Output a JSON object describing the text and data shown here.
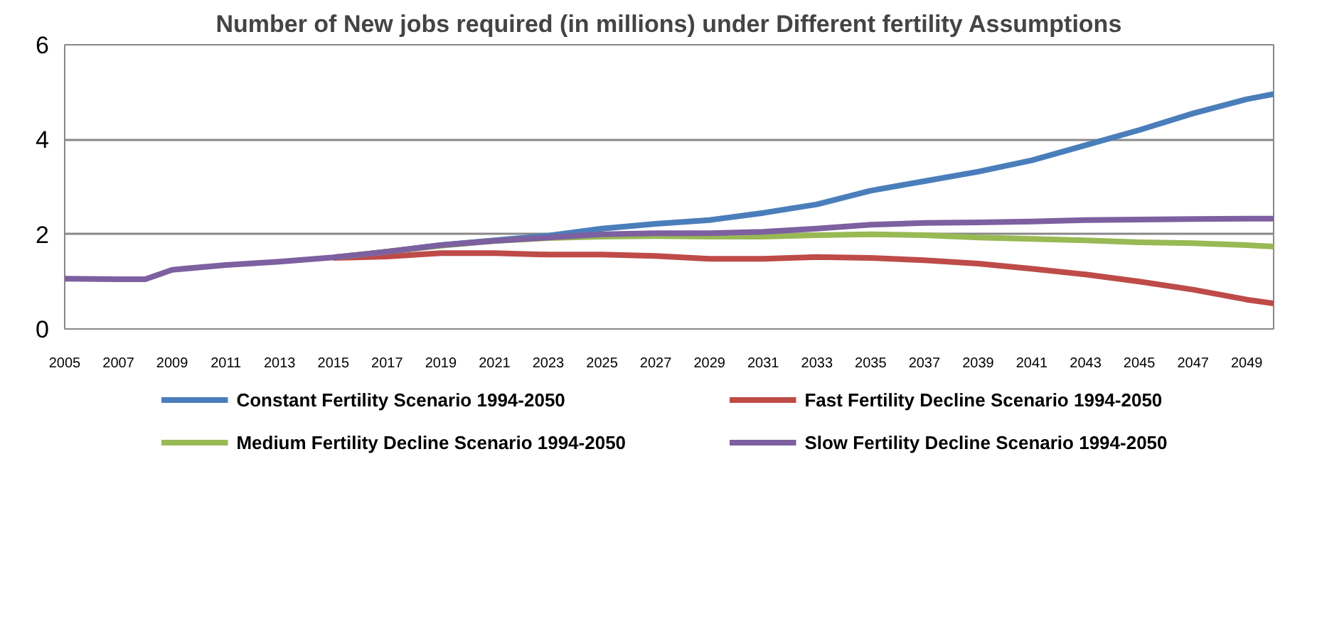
{
  "chart_data": {
    "type": "line",
    "title": "Number of New jobs required (in millions) under Different fertility Assumptions",
    "x": [
      2005,
      2007,
      2008,
      2009,
      2011,
      2013,
      2015,
      2017,
      2019,
      2021,
      2023,
      2025,
      2027,
      2029,
      2031,
      2033,
      2035,
      2037,
      2039,
      2041,
      2043,
      2045,
      2047,
      2049,
      2050
    ],
    "xlim": [
      2005,
      2050
    ],
    "xticks": [
      2005,
      2007,
      2009,
      2011,
      2013,
      2015,
      2017,
      2019,
      2021,
      2023,
      2025,
      2027,
      2029,
      2031,
      2033,
      2035,
      2037,
      2039,
      2041,
      2043,
      2045,
      2047,
      2049
    ],
    "ylim": [
      0,
      6
    ],
    "yticks": [
      0,
      2,
      4,
      6
    ],
    "grid": "y",
    "legend": "bottom",
    "line_style": "solid",
    "marker": "none",
    "series": [
      {
        "name": "Constant Fertility Scenario 1994-2050",
        "color": "#4a7ebb",
        "values": [
          null,
          null,
          null,
          null,
          null,
          null,
          1.51,
          1.63,
          1.77,
          1.87,
          1.97,
          2.12,
          2.22,
          2.3,
          2.45,
          2.63,
          2.92,
          3.12,
          3.32,
          3.56,
          3.88,
          4.2,
          4.55,
          4.85,
          4.96
        ]
      },
      {
        "name": "Fast Fertility Decline Scenario 1994-2050",
        "color": "#be4b48",
        "values": [
          null,
          null,
          null,
          null,
          null,
          null,
          1.5,
          1.53,
          1.6,
          1.6,
          1.57,
          1.57,
          1.54,
          1.48,
          1.48,
          1.52,
          1.5,
          1.45,
          1.38,
          1.27,
          1.15,
          1.0,
          0.83,
          0.62,
          0.54
        ]
      },
      {
        "name": "Medium Fertility Decline Scenario 1994-2050",
        "color": "#98b954",
        "values": [
          null,
          null,
          null,
          null,
          null,
          null,
          1.51,
          1.63,
          1.76,
          1.86,
          1.92,
          1.95,
          1.96,
          1.95,
          1.95,
          1.98,
          2.0,
          1.98,
          1.93,
          1.9,
          1.87,
          1.83,
          1.81,
          1.77,
          1.74
        ]
      },
      {
        "name": "Slow Fertility Decline Scenario 1994-2050",
        "color": "#7d60a0",
        "values": [
          1.06,
          1.05,
          1.05,
          1.25,
          1.35,
          1.42,
          1.51,
          1.63,
          1.77,
          1.86,
          1.93,
          2.0,
          2.02,
          2.02,
          2.05,
          2.12,
          2.2,
          2.24,
          2.25,
          2.27,
          2.3,
          2.31,
          2.32,
          2.33,
          2.33
        ]
      }
    ]
  }
}
